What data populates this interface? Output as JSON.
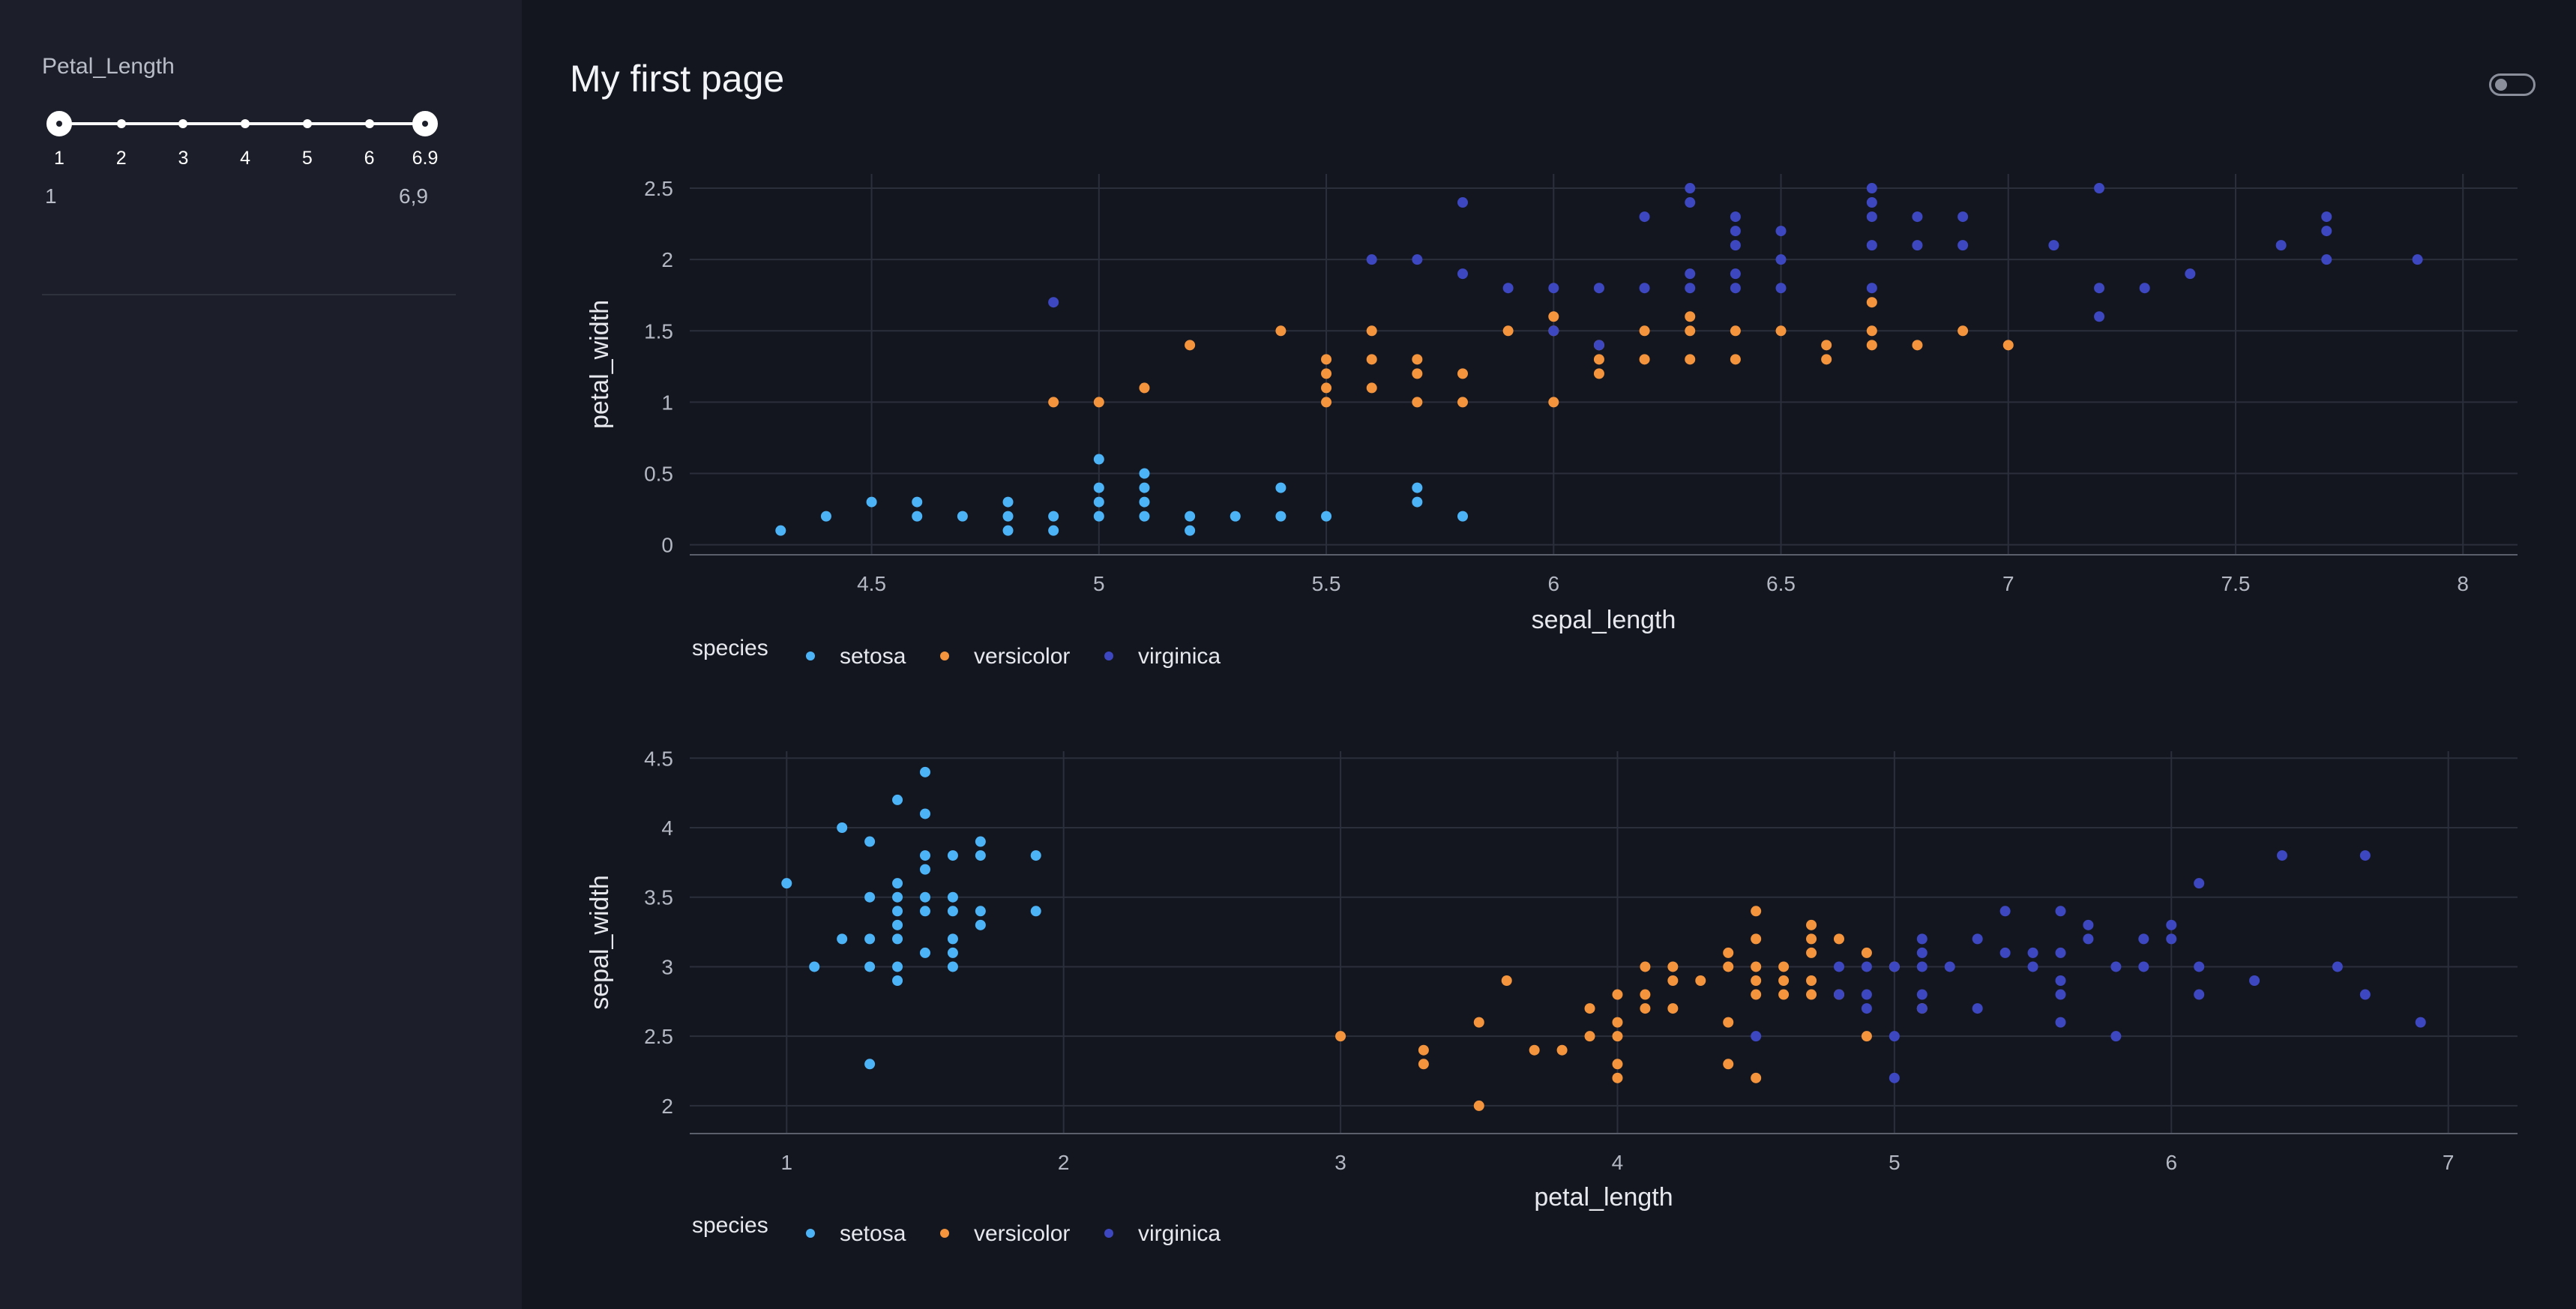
{
  "page": {
    "title": "My first page"
  },
  "sidebar": {
    "slider": {
      "label": "Petal_Length",
      "marks": [
        "1",
        "2",
        "3",
        "4",
        "5",
        "6",
        "6.9"
      ],
      "mark_values": [
        1,
        2,
        3,
        4,
        5,
        6,
        6.9
      ],
      "min": 1,
      "max": 6.9,
      "value": [
        1,
        6.9
      ],
      "value_min_text": "1",
      "value_max_text": "6,9"
    }
  },
  "colors": {
    "setosa": "#4db3f7",
    "versicolor": "#f4943d",
    "virginica": "#3d47bf",
    "grid": "#2b2f3b",
    "axis_text": "#b4b8c2"
  },
  "chart_data": [
    {
      "type": "scatter",
      "xlabel": "sepal_length",
      "ylabel": "petal_width",
      "xlim": [
        4.1,
        8.12
      ],
      "ylim": [
        -0.07,
        2.6
      ],
      "xticks": [
        4.5,
        5,
        5.5,
        6,
        6.5,
        7,
        7.5,
        8
      ],
      "yticks": [
        0,
        0.5,
        1,
        1.5,
        2,
        2.5
      ],
      "ytick_labels": [
        "0",
        "0.5",
        "1",
        "1.5",
        "2",
        "2.5"
      ],
      "legend": {
        "title": "species",
        "placement": "bottom-left",
        "entries": [
          "setosa",
          "versicolor",
          "virginica"
        ]
      },
      "series": [
        {
          "name": "setosa",
          "points": [
            [
              4.3,
              0.1
            ],
            [
              4.4,
              0.2
            ],
            [
              4.5,
              0.3
            ],
            [
              4.6,
              0.3
            ],
            [
              4.6,
              0.2
            ],
            [
              4.7,
              0.2
            ],
            [
              4.8,
              0.3
            ],
            [
              4.8,
              0.2
            ],
            [
              4.8,
              0.1
            ],
            [
              4.9,
              0.2
            ],
            [
              4.9,
              0.1
            ],
            [
              5,
              0.6
            ],
            [
              5,
              0.4
            ],
            [
              5,
              0.3
            ],
            [
              5,
              0.2
            ],
            [
              5.1,
              0.5
            ],
            [
              5.1,
              0.4
            ],
            [
              5.1,
              0.3
            ],
            [
              5.1,
              0.2
            ],
            [
              5.2,
              0.2
            ],
            [
              5.2,
              0.1
            ],
            [
              5.3,
              0.2
            ],
            [
              5.4,
              0.4
            ],
            [
              5.4,
              0.2
            ],
            [
              5.5,
              0.2
            ],
            [
              5.7,
              0.4
            ],
            [
              5.7,
              0.3
            ],
            [
              5.8,
              0.2
            ]
          ]
        },
        {
          "name": "versicolor",
          "points": [
            [
              4.9,
              1
            ],
            [
              5,
              1
            ],
            [
              5.1,
              1.1
            ],
            [
              5.2,
              1.4
            ],
            [
              5.4,
              1.5
            ],
            [
              5.5,
              1.3
            ],
            [
              5.5,
              1.2
            ],
            [
              5.5,
              1.1
            ],
            [
              5.5,
              1
            ],
            [
              5.6,
              1.5
            ],
            [
              5.6,
              1.3
            ],
            [
              5.6,
              1.1
            ],
            [
              5.7,
              1.3
            ],
            [
              5.7,
              1.2
            ],
            [
              5.7,
              1
            ],
            [
              5.8,
              1.2
            ],
            [
              5.8,
              1
            ],
            [
              5.9,
              1.5
            ],
            [
              6,
              1.6
            ],
            [
              6,
              1.5
            ],
            [
              6,
              1
            ],
            [
              6.1,
              1.4
            ],
            [
              6.1,
              1.3
            ],
            [
              6.1,
              1.2
            ],
            [
              6.2,
              1.5
            ],
            [
              6.2,
              1.3
            ],
            [
              6.3,
              1.6
            ],
            [
              6.3,
              1.5
            ],
            [
              6.3,
              1.3
            ],
            [
              6.4,
              1.5
            ],
            [
              6.4,
              1.3
            ],
            [
              6.5,
              1.5
            ],
            [
              6.6,
              1.4
            ],
            [
              6.6,
              1.3
            ],
            [
              6.7,
              1.7
            ],
            [
              6.7,
              1.5
            ],
            [
              6.7,
              1.4
            ],
            [
              6.8,
              1.4
            ],
            [
              6.9,
              1.5
            ],
            [
              7,
              1.4
            ]
          ]
        },
        {
          "name": "virginica",
          "points": [
            [
              4.9,
              1.7
            ],
            [
              5.6,
              2
            ],
            [
              5.7,
              2
            ],
            [
              5.8,
              2.4
            ],
            [
              5.8,
              1.9
            ],
            [
              5.9,
              1.8
            ],
            [
              6,
              1.8
            ],
            [
              6,
              1.5
            ],
            [
              6.1,
              1.8
            ],
            [
              6.1,
              1.4
            ],
            [
              6.2,
              2.3
            ],
            [
              6.2,
              1.8
            ],
            [
              6.3,
              2.5
            ],
            [
              6.3,
              2.4
            ],
            [
              6.3,
              1.9
            ],
            [
              6.3,
              1.8
            ],
            [
              6.4,
              2.3
            ],
            [
              6.4,
              2.2
            ],
            [
              6.4,
              2.1
            ],
            [
              6.4,
              1.9
            ],
            [
              6.4,
              1.8
            ],
            [
              6.5,
              2.2
            ],
            [
              6.5,
              2
            ],
            [
              6.5,
              1.8
            ],
            [
              6.7,
              2.5
            ],
            [
              6.7,
              2.4
            ],
            [
              6.7,
              2.3
            ],
            [
              6.7,
              2.1
            ],
            [
              6.7,
              1.8
            ],
            [
              6.8,
              2.3
            ],
            [
              6.8,
              2.1
            ],
            [
              6.9,
              2.3
            ],
            [
              6.9,
              2.1
            ],
            [
              7.1,
              2.1
            ],
            [
              7.2,
              2.5
            ],
            [
              7.2,
              1.8
            ],
            [
              7.2,
              1.6
            ],
            [
              7.3,
              1.8
            ],
            [
              7.4,
              1.9
            ],
            [
              7.6,
              2.1
            ],
            [
              7.7,
              2.3
            ],
            [
              7.7,
              2.2
            ],
            [
              7.7,
              2
            ],
            [
              7.9,
              2
            ]
          ]
        }
      ]
    },
    {
      "type": "scatter",
      "xlabel": "petal_length",
      "ylabel": "sepal_width",
      "xlim": [
        0.65,
        7.25
      ],
      "ylim": [
        1.8,
        4.55
      ],
      "xticks": [
        1,
        2,
        3,
        4,
        5,
        6,
        7
      ],
      "yticks": [
        2,
        2.5,
        3,
        3.5,
        4,
        4.5
      ],
      "ytick_labels": [
        "2",
        "2.5",
        "3",
        "3.5",
        "4",
        "4.5"
      ],
      "legend": {
        "title": "species",
        "placement": "bottom-left",
        "entries": [
          "setosa",
          "versicolor",
          "virginica"
        ]
      },
      "series": [
        {
          "name": "setosa",
          "points": [
            [
              1,
              3.6
            ],
            [
              1.1,
              3
            ],
            [
              1.2,
              4
            ],
            [
              1.2,
              3.2
            ],
            [
              1.3,
              3.9
            ],
            [
              1.3,
              3.5
            ],
            [
              1.3,
              3.2
            ],
            [
              1.3,
              3
            ],
            [
              1.3,
              2.3
            ],
            [
              1.4,
              4.2
            ],
            [
              1.4,
              3.6
            ],
            [
              1.4,
              3.5
            ],
            [
              1.4,
              3.4
            ],
            [
              1.4,
              3.3
            ],
            [
              1.4,
              3.2
            ],
            [
              1.4,
              3
            ],
            [
              1.4,
              2.9
            ],
            [
              1.5,
              4.4
            ],
            [
              1.5,
              4.1
            ],
            [
              1.5,
              3.8
            ],
            [
              1.5,
              3.7
            ],
            [
              1.5,
              3.5
            ],
            [
              1.5,
              3.4
            ],
            [
              1.5,
              3.1
            ],
            [
              1.6,
              3.8
            ],
            [
              1.6,
              3.5
            ],
            [
              1.6,
              3.4
            ],
            [
              1.6,
              3.2
            ],
            [
              1.6,
              3.1
            ],
            [
              1.6,
              3
            ],
            [
              1.7,
              3.9
            ],
            [
              1.7,
              3.8
            ],
            [
              1.7,
              3.4
            ],
            [
              1.7,
              3.3
            ],
            [
              1.9,
              3.8
            ],
            [
              1.9,
              3.4
            ]
          ]
        },
        {
          "name": "versicolor",
          "points": [
            [
              3,
              2.5
            ],
            [
              3.3,
              2.4
            ],
            [
              3.3,
              2.3
            ],
            [
              3.5,
              2.6
            ],
            [
              3.5,
              2
            ],
            [
              3.6,
              2.9
            ],
            [
              3.7,
              2.4
            ],
            [
              3.8,
              2.4
            ],
            [
              3.9,
              2.7
            ],
            [
              3.9,
              2.5
            ],
            [
              4,
              2.8
            ],
            [
              4,
              2.6
            ],
            [
              4,
              2.5
            ],
            [
              4,
              2.3
            ],
            [
              4,
              2.2
            ],
            [
              4.1,
              3
            ],
            [
              4.1,
              2.8
            ],
            [
              4.1,
              2.7
            ],
            [
              4.2,
              3
            ],
            [
              4.2,
              2.9
            ],
            [
              4.2,
              2.7
            ],
            [
              4.3,
              2.9
            ],
            [
              4.4,
              3.1
            ],
            [
              4.4,
              3
            ],
            [
              4.4,
              2.6
            ],
            [
              4.4,
              2.3
            ],
            [
              4.5,
              3.4
            ],
            [
              4.5,
              3.2
            ],
            [
              4.5,
              3
            ],
            [
              4.5,
              2.9
            ],
            [
              4.5,
              2.8
            ],
            [
              4.5,
              2.2
            ],
            [
              4.6,
              3
            ],
            [
              4.6,
              2.9
            ],
            [
              4.6,
              2.8
            ],
            [
              4.7,
              3.3
            ],
            [
              4.7,
              3.2
            ],
            [
              4.7,
              3.1
            ],
            [
              4.7,
              2.9
            ],
            [
              4.7,
              2.8
            ],
            [
              4.8,
              3.2
            ],
            [
              4.8,
              2.8
            ],
            [
              4.9,
              3.1
            ],
            [
              4.9,
              2.5
            ],
            [
              5,
              3
            ],
            [
              5.1,
              2.7
            ]
          ]
        },
        {
          "name": "virginica",
          "points": [
            [
              4.5,
              2.5
            ],
            [
              4.8,
              3
            ],
            [
              4.8,
              2.8
            ],
            [
              4.9,
              3
            ],
            [
              4.9,
              2.8
            ],
            [
              4.9,
              2.7
            ],
            [
              5,
              3
            ],
            [
              5,
              2.5
            ],
            [
              5,
              2.2
            ],
            [
              5.1,
              3.2
            ],
            [
              5.1,
              3.1
            ],
            [
              5.1,
              3
            ],
            [
              5.1,
              2.8
            ],
            [
              5.1,
              2.7
            ],
            [
              5.2,
              3
            ],
            [
              5.3,
              3.2
            ],
            [
              5.3,
              2.7
            ],
            [
              5.4,
              3.4
            ],
            [
              5.4,
              3.1
            ],
            [
              5.5,
              3.1
            ],
            [
              5.5,
              3
            ],
            [
              5.6,
              3.4
            ],
            [
              5.6,
              3.1
            ],
            [
              5.6,
              2.9
            ],
            [
              5.6,
              2.8
            ],
            [
              5.6,
              2.6
            ],
            [
              5.7,
              3.3
            ],
            [
              5.7,
              3.2
            ],
            [
              5.8,
              3
            ],
            [
              5.8,
              2.5
            ],
            [
              5.9,
              3.2
            ],
            [
              5.9,
              3
            ],
            [
              6,
              3.3
            ],
            [
              6,
              3.2
            ],
            [
              6.1,
              3.6
            ],
            [
              6.1,
              3
            ],
            [
              6.1,
              2.8
            ],
            [
              6.3,
              2.9
            ],
            [
              6.4,
              3.8
            ],
            [
              6.6,
              3
            ],
            [
              6.7,
              3.8
            ],
            [
              6.7,
              2.8
            ],
            [
              6.9,
              2.6
            ]
          ]
        }
      ]
    }
  ]
}
